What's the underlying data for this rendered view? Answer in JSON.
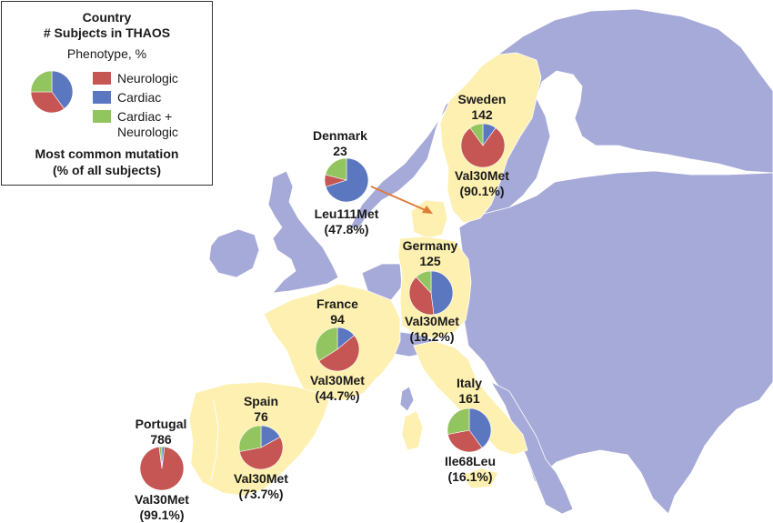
{
  "colors": {
    "neurologic": "#c55653",
    "cardiac": "#5b77c0",
    "cardiac_neurologic": "#92c45f",
    "thaos_country_fill": "#fdf0b0",
    "other_land_fill": "#a6aad8",
    "sea": "#ffffff",
    "arrow": "#e07b39"
  },
  "legend": {
    "title_line1": "Country",
    "title_line2": "# Subjects in THAOS",
    "phenotype_label": "Phenotype, %",
    "items": [
      {
        "label": "Neurologic",
        "color": "#c55653"
      },
      {
        "label": "Cardiac",
        "color": "#5b77c0"
      },
      {
        "label": "Cardiac +",
        "color": "#92c45f"
      },
      {
        "label": "Neurologic",
        "color": ""
      }
    ],
    "mutation_line1": "Most common mutation",
    "mutation_line2": "(% of all subjects)",
    "example_pie": {
      "neurologic": 35,
      "cardiac": 40,
      "cardiac_neurologic": 25
    }
  },
  "countries": [
    {
      "name": "Sweden",
      "subjects": "142",
      "mutation": "Val30Met",
      "pct": "(90.1%)",
      "phenotype": {
        "neurologic": 80,
        "cardiac": 10,
        "cardiac_neurologic": 10
      }
    },
    {
      "name": "Denmark",
      "subjects": "23",
      "mutation": "Leu111Met",
      "pct": "(47.8%)",
      "phenotype": {
        "neurologic": 9,
        "cardiac": 70,
        "cardiac_neurologic": 21
      }
    },
    {
      "name": "Germany",
      "subjects": "125",
      "mutation": "Val30Met",
      "pct": "(19.2%)",
      "phenotype": {
        "neurologic": 40,
        "cardiac": 48,
        "cardiac_neurologic": 12
      }
    },
    {
      "name": "France",
      "subjects": "94",
      "mutation": "Val30Met",
      "pct": "(44.7%)",
      "phenotype": {
        "neurologic": 52,
        "cardiac": 14,
        "cardiac_neurologic": 34
      }
    },
    {
      "name": "Italy",
      "subjects": "161",
      "mutation": "Ile68Leu",
      "pct": "(16.1%)",
      "phenotype": {
        "neurologic": 32,
        "cardiac": 40,
        "cardiac_neurologic": 28
      }
    },
    {
      "name": "Spain",
      "subjects": "76",
      "mutation": "Val30Met",
      "pct": "(73.7%)",
      "phenotype": {
        "neurologic": 55,
        "cardiac": 17,
        "cardiac_neurologic": 28
      }
    },
    {
      "name": "Portugal",
      "subjects": "786",
      "mutation": "Val30Met",
      "pct": "(99.1%)",
      "phenotype": {
        "neurologic": 96,
        "cardiac": 2,
        "cardiac_neurologic": 2
      }
    }
  ]
}
